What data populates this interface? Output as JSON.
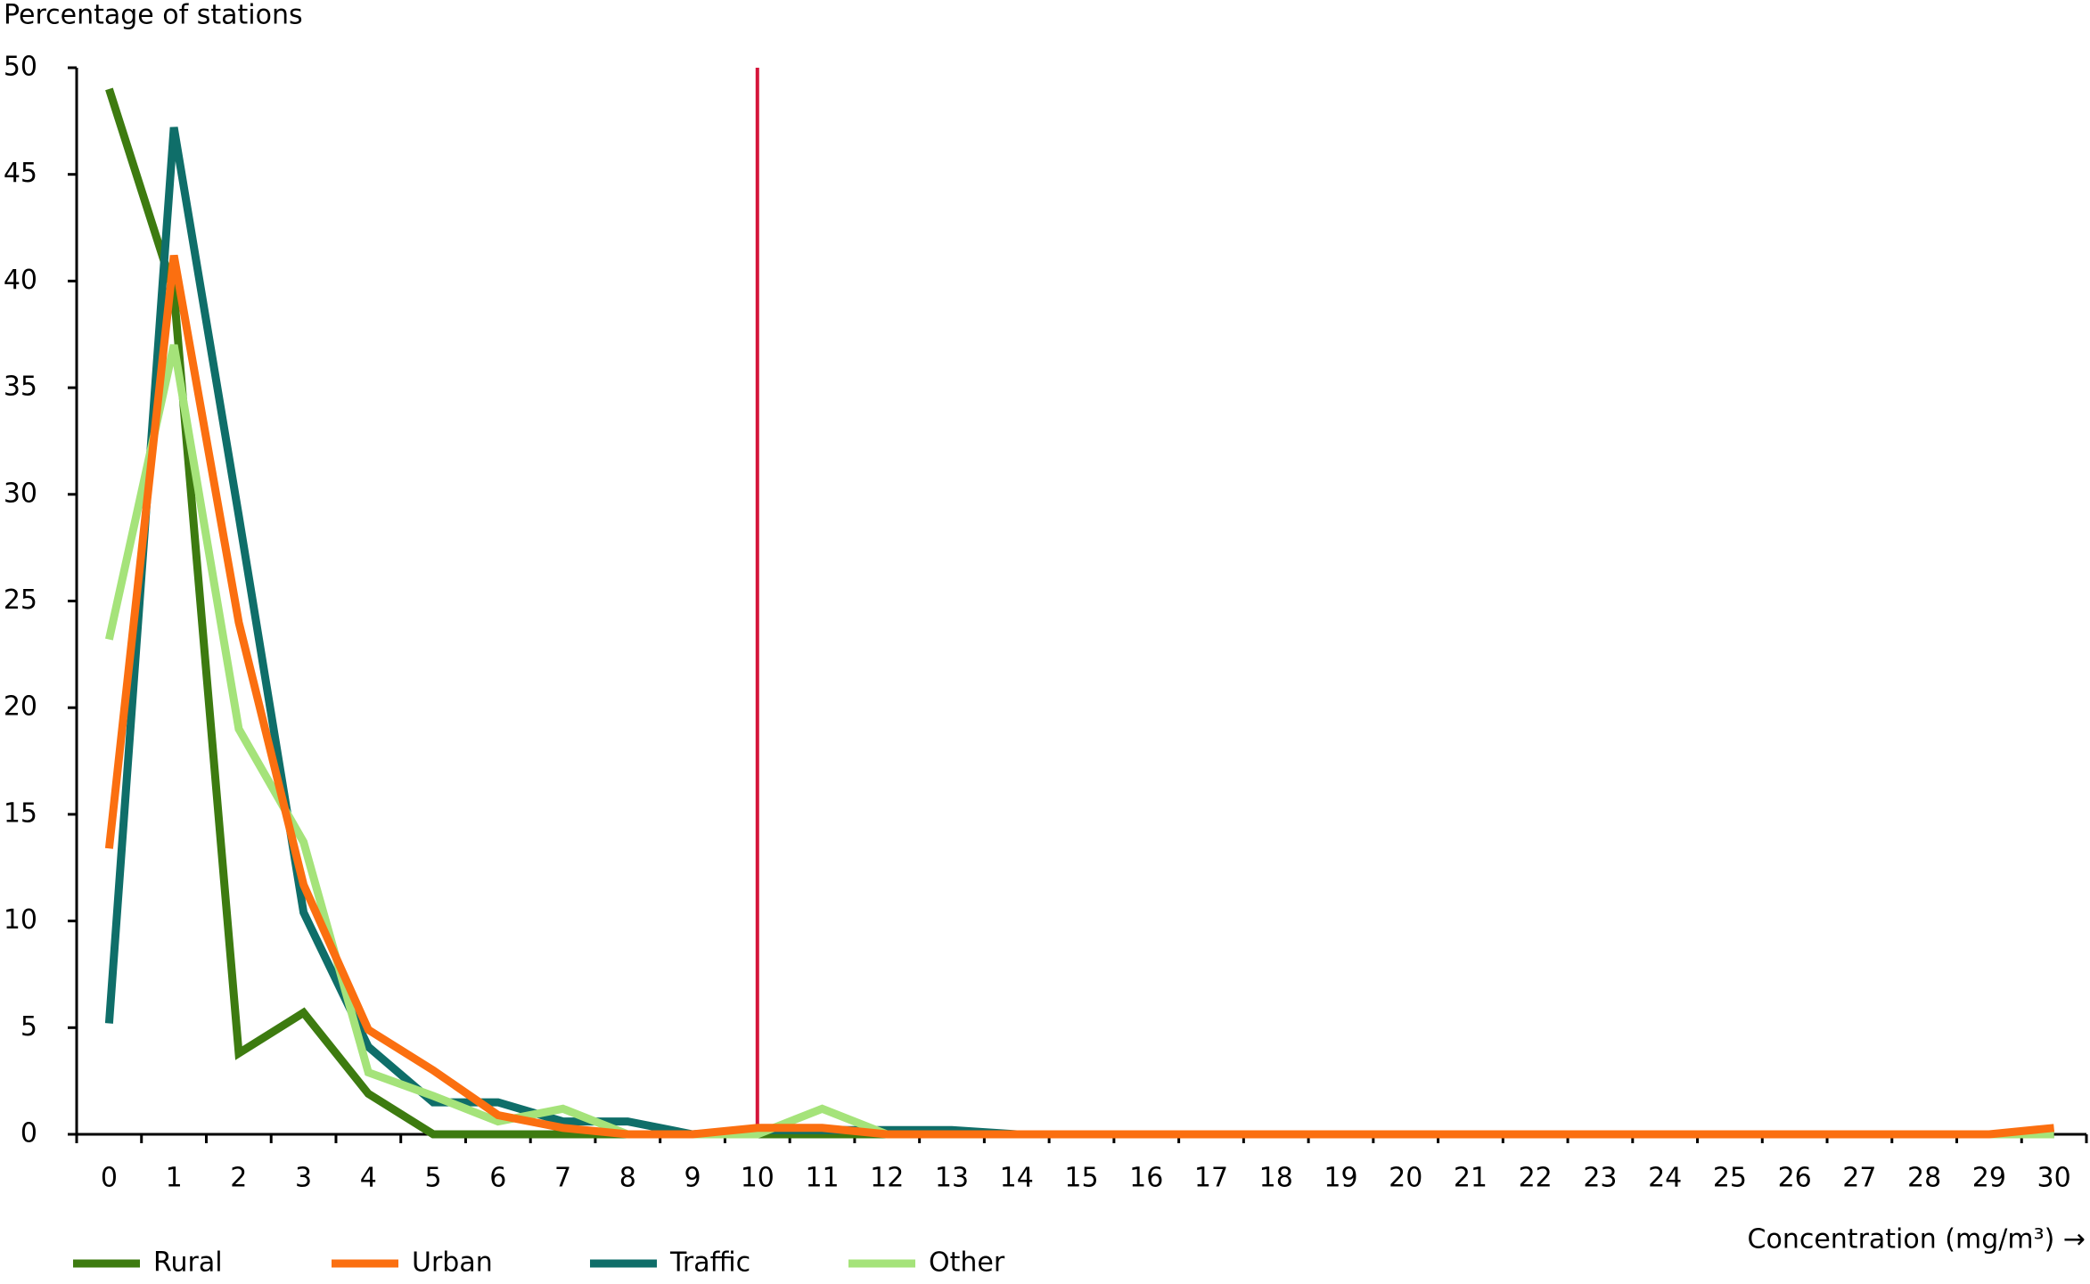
{
  "chart_data": {
    "type": "line",
    "y_label": "Percentage of stations",
    "x_label": "Concentration (mg/m³) →",
    "categories": [
      0,
      1,
      2,
      3,
      4,
      5,
      6,
      7,
      8,
      9,
      10,
      11,
      12,
      13,
      14,
      15,
      16,
      17,
      18,
      19,
      20,
      21,
      22,
      23,
      24,
      25,
      26,
      27,
      28,
      29,
      30
    ],
    "series": [
      {
        "name": "Rural",
        "color": "#3d7b10",
        "values": [
          49,
          39.5,
          3.8,
          5.7,
          1.9,
          0,
          0,
          0,
          0,
          0,
          0,
          0,
          0,
          0,
          0,
          0,
          0,
          0,
          0,
          0,
          0,
          0,
          0,
          0,
          0,
          0,
          0,
          0,
          0,
          0,
          0
        ]
      },
      {
        "name": "Traffic",
        "color": "#0f6e69",
        "values": [
          5.2,
          47.2,
          29,
          10.4,
          4.1,
          1.5,
          1.5,
          0.6,
          0.6,
          0,
          0.2,
          0.2,
          0.2,
          0.2,
          0,
          0,
          0,
          0,
          0,
          0,
          0,
          0,
          0,
          0,
          0,
          0,
          0,
          0,
          0,
          0,
          0
        ]
      },
      {
        "name": "Other",
        "color": "#a5e37a",
        "values": [
          23.2,
          37,
          19,
          13.7,
          2.9,
          1.8,
          0.6,
          1.2,
          0,
          0,
          0,
          1.2,
          0,
          0,
          0,
          0,
          0,
          0,
          0,
          0,
          0,
          0,
          0,
          0,
          0,
          0,
          0,
          0,
          0,
          0,
          0
        ]
      },
      {
        "name": "Urban",
        "color": "#fb6f10",
        "values": [
          13.4,
          41.2,
          24,
          11.7,
          4.9,
          3,
          0.9,
          0.3,
          0,
          0,
          0.3,
          0.3,
          0,
          0,
          0,
          0,
          0,
          0,
          0,
          0,
          0,
          0,
          0,
          0,
          0,
          0,
          0,
          0,
          0,
          0,
          0.3
        ]
      }
    ],
    "legend_order": [
      "Rural",
      "Urban",
      "Traffic",
      "Other"
    ],
    "reference_line": {
      "x": 10,
      "color": "#d5153b"
    },
    "ylim": [
      0,
      50
    ],
    "yticks": [
      0,
      5,
      10,
      15,
      20,
      25,
      30,
      35,
      40,
      45,
      50
    ],
    "grid": false
  }
}
